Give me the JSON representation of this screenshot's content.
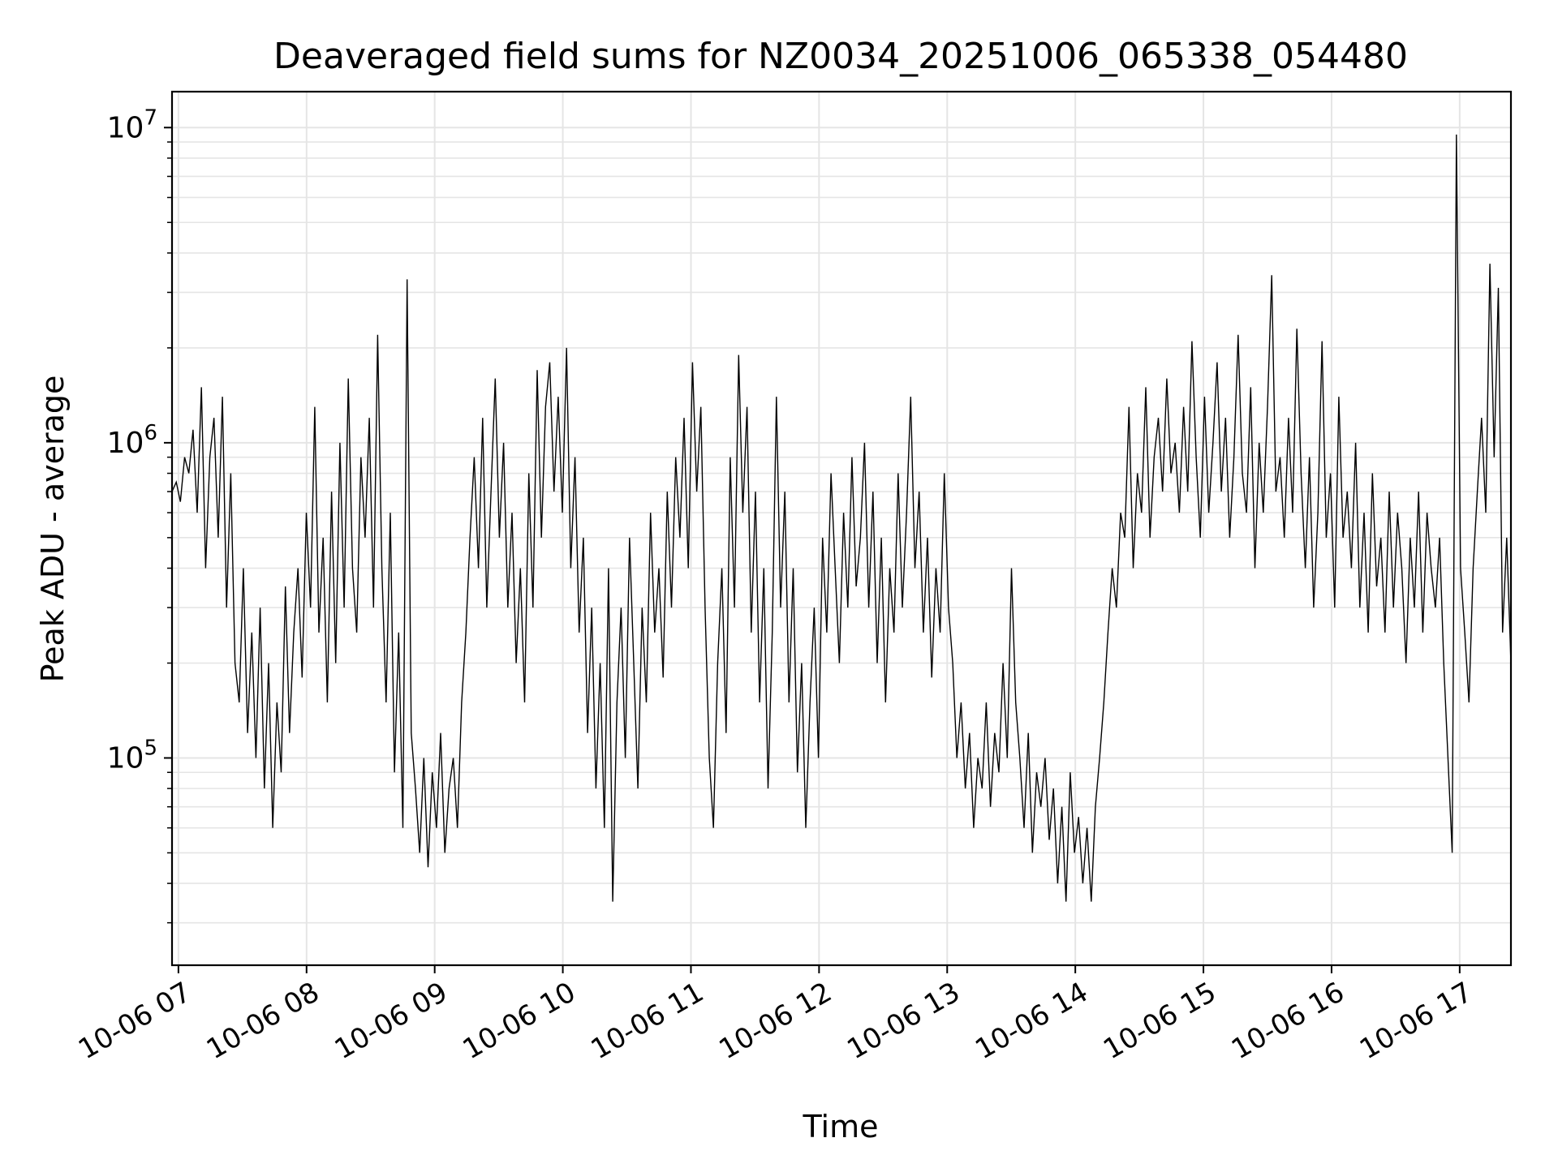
{
  "chart_data": {
    "type": "line",
    "title": "Deaveraged field sums for NZ0034_20251006_065338_054480",
    "xlabel": "Time",
    "ylabel": "Peak ADU - average",
    "yscale": "log",
    "ylim": [
      22000,
      13000000
    ],
    "xlim_hours": [
      6.95,
      17.4
    ],
    "grid": true,
    "line_color": "#000000",
    "grid_color": "#e5e5e5",
    "x_ticks": [
      {
        "hour": 7,
        "label": "10-06 07"
      },
      {
        "hour": 8,
        "label": "10-06 08"
      },
      {
        "hour": 9,
        "label": "10-06 09"
      },
      {
        "hour": 10,
        "label": "10-06 10"
      },
      {
        "hour": 11,
        "label": "10-06 11"
      },
      {
        "hour": 12,
        "label": "10-06 12"
      },
      {
        "hour": 13,
        "label": "10-06 13"
      },
      {
        "hour": 14,
        "label": "10-06 14"
      },
      {
        "hour": 15,
        "label": "10-06 15"
      },
      {
        "hour": 16,
        "label": "10-06 16"
      },
      {
        "hour": 17,
        "label": "10-06 17"
      }
    ],
    "y_ticks": [
      {
        "value": 100000,
        "base": "10",
        "exp": "5"
      },
      {
        "value": 1000000,
        "base": "10",
        "exp": "6"
      },
      {
        "value": 10000000,
        "base": "10",
        "exp": "7"
      }
    ],
    "series": [
      {
        "name": "Deaveraged field sum",
        "x_start_hour": 6.95,
        "x_end_hour": 17.4,
        "values": [
          700000,
          750000,
          650000,
          900000,
          800000,
          1100000,
          600000,
          1500000,
          400000,
          900000,
          1200000,
          500000,
          1400000,
          300000,
          800000,
          200000,
          150000,
          400000,
          120000,
          250000,
          100000,
          300000,
          80000,
          200000,
          60000,
          150000,
          90000,
          350000,
          120000,
          250000,
          400000,
          180000,
          600000,
          300000,
          1300000,
          250000,
          500000,
          150000,
          700000,
          200000,
          1000000,
          300000,
          1600000,
          400000,
          250000,
          900000,
          500000,
          1200000,
          300000,
          2200000,
          400000,
          150000,
          600000,
          90000,
          250000,
          60000,
          3300000,
          120000,
          80000,
          50000,
          100000,
          45000,
          90000,
          60000,
          120000,
          50000,
          80000,
          100000,
          60000,
          150000,
          250000,
          500000,
          900000,
          400000,
          1200000,
          300000,
          700000,
          1600000,
          500000,
          1000000,
          300000,
          600000,
          200000,
          400000,
          150000,
          800000,
          300000,
          1700000,
          500000,
          1300000,
          1800000,
          700000,
          1400000,
          600000,
          2000000,
          400000,
          900000,
          250000,
          500000,
          120000,
          300000,
          80000,
          200000,
          60000,
          400000,
          35000,
          150000,
          300000,
          100000,
          500000,
          200000,
          80000,
          300000,
          150000,
          600000,
          250000,
          400000,
          180000,
          700000,
          300000,
          900000,
          500000,
          1200000,
          400000,
          1800000,
          700000,
          1300000,
          300000,
          100000,
          60000,
          200000,
          400000,
          120000,
          900000,
          300000,
          1900000,
          600000,
          1300000,
          250000,
          700000,
          150000,
          400000,
          80000,
          250000,
          1400000,
          300000,
          700000,
          150000,
          400000,
          90000,
          200000,
          60000,
          150000,
          300000,
          100000,
          500000,
          250000,
          800000,
          400000,
          200000,
          600000,
          300000,
          900000,
          350000,
          500000,
          1000000,
          300000,
          700000,
          200000,
          500000,
          150000,
          400000,
          250000,
          800000,
          300000,
          600000,
          1400000,
          400000,
          700000,
          250000,
          500000,
          180000,
          400000,
          250000,
          800000,
          300000,
          200000,
          100000,
          150000,
          80000,
          120000,
          60000,
          100000,
          80000,
          150000,
          70000,
          120000,
          90000,
          200000,
          100000,
          400000,
          150000,
          100000,
          60000,
          120000,
          50000,
          90000,
          70000,
          100000,
          55000,
          80000,
          40000,
          70000,
          35000,
          90000,
          50000,
          65000,
          40000,
          60000,
          35000,
          70000,
          100000,
          150000,
          250000,
          400000,
          300000,
          600000,
          500000,
          1300000,
          400000,
          800000,
          600000,
          1500000,
          500000,
          900000,
          1200000,
          700000,
          1600000,
          800000,
          1000000,
          600000,
          1300000,
          700000,
          2100000,
          900000,
          500000,
          1400000,
          600000,
          1000000,
          1800000,
          700000,
          1200000,
          500000,
          900000,
          2200000,
          800000,
          600000,
          1500000,
          400000,
          1000000,
          600000,
          1300000,
          3400000,
          700000,
          900000,
          500000,
          1200000,
          600000,
          2300000,
          800000,
          400000,
          900000,
          300000,
          600000,
          2100000,
          500000,
          800000,
          300000,
          1400000,
          500000,
          700000,
          400000,
          1000000,
          300000,
          600000,
          250000,
          800000,
          350000,
          500000,
          250000,
          700000,
          300000,
          600000,
          400000,
          200000,
          500000,
          300000,
          700000,
          250000,
          600000,
          400000,
          300000,
          500000,
          200000,
          100000,
          50000,
          9500000,
          400000,
          250000,
          150000,
          400000,
          700000,
          1200000,
          600000,
          3700000,
          900000,
          3100000,
          250000,
          500000,
          200000
        ]
      }
    ]
  }
}
